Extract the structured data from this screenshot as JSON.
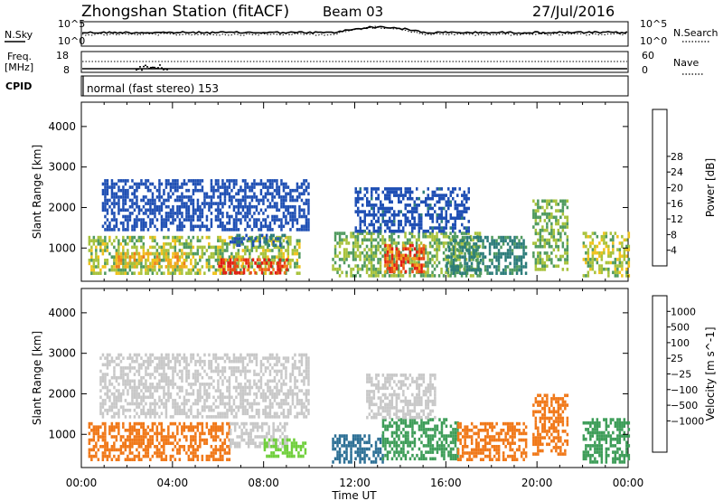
{
  "header": {
    "station": "Zhongshan Station (fitACF)",
    "beam": "Beam 03",
    "date": "27/Jul/2016"
  },
  "strip_labels": {
    "nsky": "N.Sky",
    "nsearch": "N.Search",
    "freq_top": "Freq.",
    "freq_unit": "[MHz]",
    "nave": "Nave",
    "cpid": "CPID",
    "noise_left_ticks": [
      "10^5",
      "10^0"
    ],
    "noise_right_ticks": [
      "10^5",
      "10^0"
    ],
    "freq_left_ticks": [
      "18",
      "8"
    ],
    "nave_right_ticks": [
      "60",
      "0"
    ],
    "cpid_text": "normal (fast stereo) 153"
  },
  "colors": {
    "power": [
      "#1e1ef0",
      "#1f4fb4",
      "#2c7c7a",
      "#4f9a5e",
      "#a7c23c",
      "#f0c21b",
      "#f3a81d",
      "#ef7a19",
      "#e94716",
      "#e31c12"
    ],
    "velocity": [
      "#e31c12",
      "#ea4716",
      "#f07818",
      "#f3a81d",
      "#c8c8c8",
      "#c8c8c8",
      "#6fcf3a",
      "#3d9d58",
      "#2c6f95",
      "#1e44c8"
    ]
  },
  "chart_data": [
    {
      "type": "heatmap",
      "title": "Power",
      "xlabel": "Time UT",
      "ylabel": "Slant Range [km]",
      "x_ticks": [
        "00:00",
        "04:00",
        "08:00",
        "12:00",
        "16:00",
        "20:00",
        "00:00"
      ],
      "xlim_hours": [
        0,
        24
      ],
      "y_ticks": [
        1000,
        2000,
        3000,
        4000
      ],
      "ylim": [
        180,
        4600
      ],
      "colorbar_label": "Power [dB]",
      "colorbar_ticks": [
        "4",
        "8",
        "12",
        "16",
        "20",
        "24",
        "28"
      ],
      "colorbar_range": [
        0,
        30
      ],
      "regions": [
        {
          "t0": 0.3,
          "t1": 9.6,
          "r0": 350,
          "r1": 1300,
          "value": 13
        },
        {
          "t0": 6.0,
          "t1": 9.0,
          "r0": 400,
          "r1": 750,
          "value": 27
        },
        {
          "t0": 1.5,
          "t1": 4.5,
          "r0": 500,
          "r1": 900,
          "value": 18
        },
        {
          "t0": 6.5,
          "t1": 9.0,
          "r0": 1100,
          "r1": 1350,
          "value": 6
        },
        {
          "t0": 0.9,
          "t1": 10.0,
          "r0": 1450,
          "r1": 2700,
          "value": 4
        },
        {
          "t0": 11.0,
          "t1": 17.5,
          "r0": 350,
          "r1": 1400,
          "value": 12
        },
        {
          "t0": 13.3,
          "t1": 15.0,
          "r0": 450,
          "r1": 1100,
          "value": 26
        },
        {
          "t0": 12.0,
          "t1": 17.0,
          "r0": 1400,
          "r1": 2500,
          "value": 5
        },
        {
          "t0": 16.0,
          "t1": 19.5,
          "r0": 400,
          "r1": 1300,
          "value": 8
        },
        {
          "t0": 19.8,
          "t1": 21.3,
          "r0": 500,
          "r1": 2200,
          "value": 12
        },
        {
          "t0": 22.0,
          "t1": 24.0,
          "r0": 300,
          "r1": 1400,
          "value": 14
        }
      ]
    },
    {
      "type": "heatmap",
      "title": "Velocity",
      "xlabel": "Time UT",
      "ylabel": "Slant Range [km]",
      "x_ticks": [
        "00:00",
        "04:00",
        "08:00",
        "12:00",
        "16:00",
        "20:00",
        "00:00"
      ],
      "xlim_hours": [
        0,
        24
      ],
      "y_ticks": [
        1000,
        2000,
        3000,
        4000
      ],
      "ylim": [
        180,
        4600
      ],
      "colorbar_label": "Velocity [m s^-1]",
      "colorbar_ticks": [
        "1000",
        "500",
        "100",
        "25",
        "−25",
        "−100",
        "−500",
        "−1000"
      ],
      "regions": [
        {
          "t0": 0.3,
          "t1": 6.5,
          "r0": 350,
          "r1": 1300,
          "value": -300
        },
        {
          "t0": 6.5,
          "t1": 9.0,
          "r0": 700,
          "r1": 1300,
          "value": 0
        },
        {
          "t0": 8.0,
          "t1": 9.8,
          "r0": 450,
          "r1": 900,
          "value": 60
        },
        {
          "t0": 0.8,
          "t1": 10.0,
          "r0": 1450,
          "r1": 3000,
          "value": 0
        },
        {
          "t0": 11.0,
          "t1": 13.2,
          "r0": 350,
          "r1": 1000,
          "value": 700
        },
        {
          "t0": 13.2,
          "t1": 16.5,
          "r0": 400,
          "r1": 1400,
          "value": 300
        },
        {
          "t0": 12.5,
          "t1": 15.5,
          "r0": 1400,
          "r1": 2500,
          "value": 0
        },
        {
          "t0": 16.5,
          "t1": 19.5,
          "r0": 400,
          "r1": 1300,
          "value": -300
        },
        {
          "t0": 19.8,
          "t1": 21.3,
          "r0": 500,
          "r1": 2000,
          "value": -200
        },
        {
          "t0": 22.0,
          "t1": 24.0,
          "r0": 300,
          "r1": 1400,
          "value": 200
        }
      ]
    }
  ]
}
